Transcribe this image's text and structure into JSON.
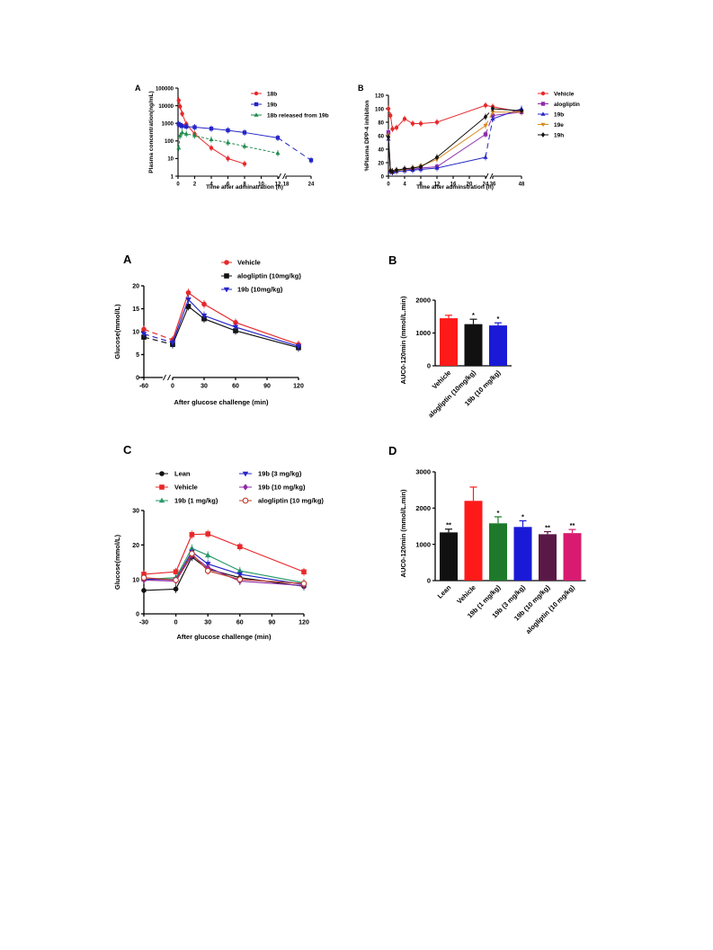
{
  "chart_data": [
    {
      "id": "top_A",
      "type": "line",
      "panel_label": "A",
      "xlabel": "Time after adminatration (h)",
      "ylabel": "Plasma concentration(ng/mL)",
      "yscale": "log",
      "ylim": [
        1,
        100000
      ],
      "yticks": [
        1,
        10,
        100,
        1000,
        10000,
        100000
      ],
      "ytick_labels": [
        "1",
        "10",
        "100",
        "1000",
        "10000",
        "100000"
      ],
      "xticks": [
        0,
        2,
        4,
        6,
        8,
        10,
        12,
        18,
        24
      ],
      "xtick_labels": [
        "0",
        "2",
        "4",
        "6",
        "8",
        "10",
        "12",
        "18",
        "24"
      ],
      "axis_break": [
        13,
        17
      ],
      "legend_position": "right",
      "series": [
        {
          "name": "18b",
          "color": "#e8282b",
          "marker": "circle",
          "x": [
            0.08,
            0.25,
            0.5,
            1,
            2,
            4,
            6,
            8
          ],
          "y": [
            20000,
            9000,
            3500,
            900,
            250,
            40,
            10,
            5
          ]
        },
        {
          "name": "19b",
          "color": "#2424c8",
          "marker": "square",
          "x": [
            0.08,
            0.25,
            0.5,
            1,
            2,
            4,
            6,
            8,
            12,
            24
          ],
          "y": [
            900,
            800,
            700,
            650,
            600,
            500,
            400,
            300,
            150,
            8
          ]
        },
        {
          "name": "18b released from 19b",
          "color": "#1e8a4a",
          "marker": "triangle",
          "dashed": true,
          "x": [
            0.08,
            0.25,
            0.5,
            1,
            2,
            4,
            6,
            8,
            12
          ],
          "y": [
            40,
            200,
            300,
            250,
            200,
            120,
            80,
            50,
            20
          ]
        }
      ]
    },
    {
      "id": "top_B",
      "type": "line",
      "panel_label": "B",
      "xlabel": "Time after adminstration (h)",
      "ylabel": "%Plasma DPP-4 inhibiton",
      "ylim": [
        0,
        120
      ],
      "yticks": [
        0,
        20,
        40,
        60,
        80,
        100,
        120
      ],
      "xticks": [
        0,
        4,
        8,
        12,
        16,
        20,
        24,
        36,
        48
      ],
      "axis_break": [
        25,
        35
      ],
      "legend_position": "right",
      "series": [
        {
          "name": "Vehicle",
          "color": "#e8282b",
          "marker": "circle",
          "x": [
            0,
            0.5,
            1,
            2,
            4,
            6,
            8,
            12,
            24,
            36,
            48
          ],
          "y": [
            100,
            90,
            70,
            72,
            85,
            78,
            78,
            80,
            105,
            103,
            95
          ]
        },
        {
          "name": "alogliptin",
          "color": "#8e2aa8",
          "marker": "square",
          "x": [
            0,
            0.5,
            1,
            2,
            4,
            6,
            8,
            12,
            24,
            36,
            48
          ],
          "y": [
            65,
            8,
            6,
            8,
            10,
            10,
            12,
            14,
            62,
            90,
            95
          ]
        },
        {
          "name": "19b",
          "color": "#2424c8",
          "marker": "triangle",
          "x": [
            0,
            0.5,
            1,
            2,
            4,
            6,
            8,
            12,
            24,
            36,
            48
          ],
          "y": [
            55,
            7,
            6,
            7,
            8,
            9,
            10,
            12,
            28,
            85,
            100
          ]
        },
        {
          "name": "19e",
          "color": "#d98a1f",
          "marker": "triangle-down",
          "x": [
            0,
            0.5,
            1,
            2,
            4,
            6,
            8,
            12,
            24,
            36,
            48
          ],
          "y": [
            60,
            8,
            7,
            8,
            10,
            12,
            15,
            25,
            75,
            95,
            95
          ]
        },
        {
          "name": "19h",
          "color": "#111111",
          "marker": "diamond",
          "x": [
            0,
            0.5,
            1,
            2,
            4,
            6,
            8,
            12,
            24,
            36,
            48
          ],
          "y": [
            58,
            8,
            7,
            9,
            11,
            12,
            14,
            28,
            88,
            100,
            97
          ]
        }
      ]
    },
    {
      "id": "mid_A",
      "type": "line",
      "panel_label": "A",
      "xlabel": "After glucose challenge (min)",
      "ylabel": "Glucose(mmol/L)",
      "ylim": [
        0,
        20
      ],
      "yticks": [
        0,
        5,
        10,
        15,
        20
      ],
      "xticks": [
        -60,
        0,
        30,
        60,
        90,
        120
      ],
      "axis_break": [
        -45,
        -5
      ],
      "legend_position": "top-right",
      "series": [
        {
          "name": "Vehicle",
          "color": "#e8282b",
          "marker": "circle",
          "x": [
            -60,
            0,
            15,
            30,
            60,
            120
          ],
          "y": [
            10.5,
            8.2,
            18.5,
            16.0,
            12.0,
            7.2
          ]
        },
        {
          "name": "alogliptin (10mg/kg)",
          "color": "#111111",
          "marker": "square",
          "x": [
            -60,
            0,
            15,
            30,
            60,
            120
          ],
          "y": [
            8.8,
            7.2,
            15.5,
            12.8,
            10.2,
            6.5
          ]
        },
        {
          "name": "19b  (10mg/kg)",
          "color": "#2424c8",
          "marker": "triangle-down",
          "x": [
            -60,
            0,
            15,
            30,
            60,
            120
          ],
          "y": [
            9.5,
            7.6,
            17.0,
            13.5,
            11.0,
            6.8
          ]
        }
      ]
    },
    {
      "id": "mid_B",
      "type": "bar",
      "panel_label": "B",
      "ylabel": "AUC0-120min (mmol/L.min)",
      "ylim": [
        0,
        2000
      ],
      "yticks": [
        0,
        1000,
        2000
      ],
      "categories": [
        "Vehicle",
        "alogliptin (10mg/kg)",
        "19b  (10 mg/kg)"
      ],
      "values": [
        1450,
        1270,
        1230
      ],
      "errors": [
        90,
        150,
        80
      ],
      "significance": [
        "",
        "*",
        "*"
      ],
      "colors": [
        "#ff1a1a",
        "#111111",
        "#1a1ad6"
      ]
    },
    {
      "id": "bot_C",
      "type": "line",
      "panel_label": "C",
      "xlabel": "After glucose challenge (min)",
      "ylabel": "Glucose(mmol/L)",
      "ylim": [
        0,
        30
      ],
      "yticks": [
        0,
        10,
        20,
        30
      ],
      "xticks": [
        -30,
        0,
        30,
        60,
        90,
        120
      ],
      "legend_position": "top",
      "series": [
        {
          "name": "Lean",
          "color": "#111111",
          "marker": "circle",
          "x": [
            -30,
            0,
            15,
            30,
            60,
            120
          ],
          "y": [
            6.8,
            7.2,
            16.5,
            13.0,
            10.5,
            8.0
          ]
        },
        {
          "name": "Vehicle",
          "color": "#e8282b",
          "marker": "square",
          "x": [
            -30,
            0,
            15,
            30,
            60,
            120
          ],
          "y": [
            11.5,
            12.2,
            23.0,
            23.2,
            19.5,
            12.2
          ]
        },
        {
          "name": "19b (1 mg/kg)",
          "color": "#2a9a6a",
          "marker": "triangle",
          "x": [
            -30,
            0,
            15,
            30,
            60,
            120
          ],
          "y": [
            10.0,
            10.5,
            19.0,
            17.0,
            12.5,
            9.0
          ]
        },
        {
          "name": "19b (3 mg/kg)",
          "color": "#2424c8",
          "marker": "triangle-down",
          "x": [
            -30,
            0,
            15,
            30,
            60,
            120
          ],
          "y": [
            10.0,
            10.0,
            18.0,
            14.5,
            11.5,
            8.5
          ]
        },
        {
          "name": "19b (10 mg/kg)",
          "color": "#8e2aa8",
          "marker": "diamond",
          "x": [
            -30,
            0,
            15,
            30,
            60,
            120
          ],
          "y": [
            9.8,
            9.5,
            17.0,
            13.5,
            9.5,
            8.2
          ]
        },
        {
          "name": "alogliptin (10 mg/kg)",
          "color": "#c0392b",
          "marker": "circle-open",
          "x": [
            -30,
            0,
            15,
            30,
            60,
            120
          ],
          "y": [
            10.5,
            9.8,
            17.5,
            12.5,
            10.0,
            8.8
          ]
        }
      ]
    },
    {
      "id": "bot_D",
      "type": "bar",
      "panel_label": "D",
      "ylabel": "AUC0-120min (mmol/L.min)",
      "ylim": [
        0,
        3000
      ],
      "yticks": [
        0,
        1000,
        2000,
        3000
      ],
      "categories": [
        "Lean",
        "Vehicle",
        "19b (1 mg/kg)",
        "19b (3 mg/kg)",
        "19b (10 mg/kg)",
        "alogliptin (10 mg/kg)"
      ],
      "values": [
        1330,
        2200,
        1580,
        1480,
        1280,
        1310
      ],
      "errors": [
        90,
        380,
        180,
        170,
        70,
        100
      ],
      "significance": [
        "**",
        "",
        "*",
        "*",
        "**",
        "**"
      ],
      "colors": [
        "#111111",
        "#ff1a1a",
        "#1e7a2a",
        "#1a1ad6",
        "#5a1846",
        "#d81b70"
      ]
    }
  ]
}
